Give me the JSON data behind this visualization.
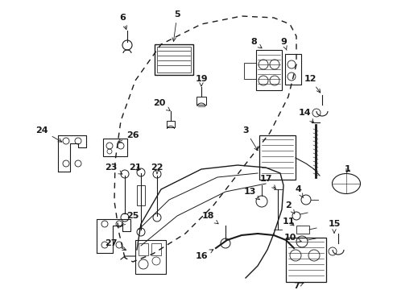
{
  "background_color": "#ffffff",
  "figure_width": 4.89,
  "figure_height": 3.6,
  "dpi": 100,
  "color": "#1a1a1a"
}
